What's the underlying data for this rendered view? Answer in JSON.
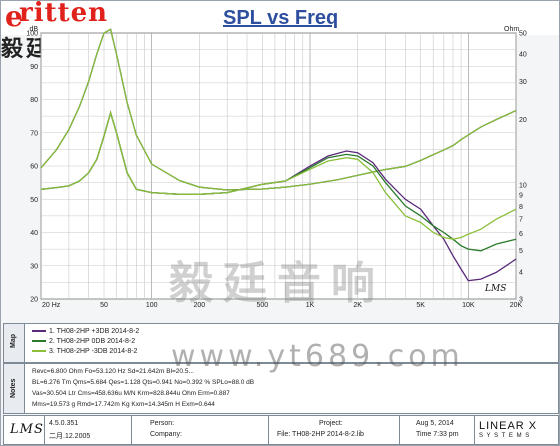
{
  "header": {
    "logo_text": "ritten",
    "logo_cn": "毅廷音响",
    "title": "SPL vs Freq"
  },
  "chart_data": {
    "type": "line",
    "title": "SPL vs Freq",
    "x_scale": "log",
    "xlim": [
      20,
      20000
    ],
    "x_ticks": [
      "20 Hz",
      "50",
      "100",
      "200",
      "500",
      "1K",
      "2K",
      "5K",
      "10K",
      "20K"
    ],
    "x_tick_values": [
      20,
      50,
      100,
      200,
      500,
      1000,
      2000,
      5000,
      10000,
      20000
    ],
    "y_left": {
      "unit": "dB",
      "ylim": [
        20,
        100
      ],
      "ticks": [
        20,
        25,
        30,
        35,
        40,
        45,
        50,
        55,
        60,
        65,
        70,
        75,
        80,
        85,
        90,
        95,
        100
      ]
    },
    "y_right": {
      "unit": "Ohm",
      "ylim": [
        3,
        50
      ],
      "ticks": [
        3,
        4,
        5,
        6,
        7,
        8,
        9,
        10,
        20,
        30,
        40,
        50
      ]
    },
    "grid": true,
    "spl_series": [
      {
        "name": "1. TH08-2HP +3DB 2014-8-2",
        "color": "#5a2a7a",
        "x": [
          20,
          25,
          30,
          35,
          40,
          45,
          50,
          55,
          60,
          70,
          80,
          100,
          150,
          200,
          300,
          500,
          700,
          1000,
          1300,
          1700,
          2000,
          2500,
          3000,
          4000,
          5000,
          6000,
          7000,
          8000,
          9000,
          10000,
          12000,
          15000,
          20000
        ],
        "y": [
          53,
          53.5,
          54,
          55.5,
          58,
          62,
          69,
          76,
          70,
          58,
          53,
          52,
          51.5,
          51.5,
          52,
          54.5,
          55.5,
          60,
          63,
          64.5,
          64,
          61,
          56,
          50,
          47,
          42,
          38,
          33,
          29,
          25.5,
          26,
          28,
          32
        ]
      },
      {
        "name": "2. TH08-2HP 0DB 2014-8-2",
        "color": "#2a7a2a",
        "x": [
          20,
          25,
          30,
          35,
          40,
          45,
          50,
          55,
          60,
          70,
          80,
          100,
          150,
          200,
          300,
          500,
          700,
          1000,
          1300,
          1700,
          2000,
          2500,
          3000,
          4000,
          5000,
          6000,
          7000,
          8000,
          9000,
          10000,
          12000,
          15000,
          20000
        ],
        "y": [
          53,
          53.5,
          54,
          55.5,
          58,
          62,
          69,
          76,
          70,
          58,
          53,
          52,
          51.5,
          51.5,
          52,
          54.5,
          55.5,
          59.5,
          62.5,
          63.5,
          63,
          60,
          55,
          48,
          45,
          42,
          40,
          38,
          36,
          35,
          34.5,
          36.5,
          38
        ]
      },
      {
        "name": "3. TH08-2HP -3DB 2014-8-2",
        "color": "#8bbf3b",
        "x": [
          20,
          25,
          30,
          35,
          40,
          45,
          50,
          55,
          60,
          70,
          80,
          100,
          150,
          200,
          300,
          500,
          700,
          1000,
          1300,
          1700,
          2000,
          2500,
          3000,
          4000,
          5000,
          6000,
          7000,
          8000,
          9000,
          10000,
          12000,
          15000,
          20000
        ],
        "y": [
          53,
          53.5,
          54,
          55.5,
          58,
          62,
          69,
          76,
          70,
          58,
          53,
          52,
          51.5,
          51.5,
          52,
          54.5,
          55.5,
          59,
          61.5,
          62.5,
          62,
          58,
          52,
          45,
          43,
          40,
          38.5,
          38,
          38.5,
          39.5,
          41,
          44,
          47
        ]
      }
    ],
    "impedance_series": [
      {
        "name": "1. TH08-2HP +3DB 2014-8-2",
        "color": "#5a2a7a",
        "x": [
          20,
          25,
          30,
          35,
          40,
          45,
          50,
          55,
          60,
          70,
          80,
          100,
          150,
          200,
          300,
          500,
          700,
          1000,
          1500,
          2000,
          2500,
          3000,
          4000,
          5000,
          6000,
          7000,
          8000,
          9000,
          10000,
          12000,
          15000,
          20000
        ],
        "y": [
          12,
          14.5,
          18,
          23,
          30,
          40,
          50,
          52,
          40,
          24,
          17,
          12.5,
          10.5,
          9.8,
          9.5,
          9.6,
          9.8,
          10.1,
          10.6,
          11.1,
          11.5,
          11.8,
          12.2,
          13,
          13.8,
          14.5,
          15.2,
          16.2,
          17,
          18.5,
          20,
          22
        ]
      },
      {
        "name": "2. TH08-2HP 0DB 2014-8-2",
        "color": "#2a7a2a",
        "x": [
          20,
          25,
          30,
          35,
          40,
          45,
          50,
          55,
          60,
          70,
          80,
          100,
          150,
          200,
          300,
          500,
          700,
          1000,
          1500,
          2000,
          2500,
          3000,
          4000,
          5000,
          6000,
          7000,
          8000,
          9000,
          10000,
          12000,
          15000,
          20000
        ],
        "y": [
          12,
          14.5,
          18,
          23,
          30,
          40,
          50,
          52,
          40,
          24,
          17,
          12.5,
          10.5,
          9.8,
          9.5,
          9.6,
          9.8,
          10.1,
          10.6,
          11.1,
          11.5,
          11.8,
          12.2,
          13,
          13.8,
          14.5,
          15.2,
          16.2,
          17,
          18.5,
          20,
          22
        ]
      },
      {
        "name": "3. TH08-2HP -3DB 2014-8-2",
        "color": "#8bbf3b",
        "x": [
          20,
          25,
          30,
          35,
          40,
          45,
          50,
          55,
          60,
          70,
          80,
          100,
          150,
          200,
          300,
          500,
          700,
          1000,
          1500,
          2000,
          2500,
          3000,
          4000,
          5000,
          6000,
          7000,
          8000,
          9000,
          10000,
          12000,
          15000,
          20000
        ],
        "y": [
          12,
          14.5,
          18,
          23,
          30,
          40,
          50,
          52,
          40,
          24,
          17,
          12.5,
          10.5,
          9.8,
          9.5,
          9.6,
          9.8,
          10.1,
          10.6,
          11.1,
          11.5,
          11.8,
          12.2,
          13,
          13.8,
          14.5,
          15.2,
          16.2,
          17,
          18.5,
          20,
          22
        ]
      }
    ]
  },
  "watermarks": {
    "cn": "毅廷音响",
    "url": "www.yt689.com"
  },
  "map_panel": {
    "label": "Map",
    "rows": [
      {
        "text": "1. TH08-2HP  +3DB  2014-8-2",
        "color": "#5a2a7a"
      },
      {
        "text": "2. TH08-2HP   0DB  2014-8-2",
        "color": "#2a7a2a"
      },
      {
        "text": "3. TH08-2HP  -3DB  2014-8-2",
        "color": "#8bbf3b"
      }
    ]
  },
  "notes_panel": {
    "label": "Notes",
    "rows": [
      "Revc=6.800 Ohm  Fo=53.120 Hz  Sd=21.642m  Bl=20.5...",
      "BL=6.276 Tm  Qms=5.684  Qes=1.128  Qts=0.941  No=0.392 %  SPLo=88.0 dB",
      "Vas=30.504 Ltr  Cms=458.636u M/N  Krm=828.844u Ohm  Erm=0.887",
      "Mms=19.573 g  Rmd=17.742m Kg  Kxm=14.345m H  Exm=0.644"
    ]
  },
  "footer": {
    "lms_logo": "LMS",
    "version": "4.5.0.351",
    "date": "二月.12.2005",
    "person_label": "Person:",
    "company_label": "Company:",
    "project_label": "Project:",
    "file_text": "File: TH08-2HP  2014-8-2.lib",
    "date_right": "Aug  5, 2014",
    "time_right": "Time  7:33 pm",
    "brand": "LINEAR X",
    "brand_sub": "S Y S T E M S"
  },
  "plot_lms_mark": "LMS"
}
